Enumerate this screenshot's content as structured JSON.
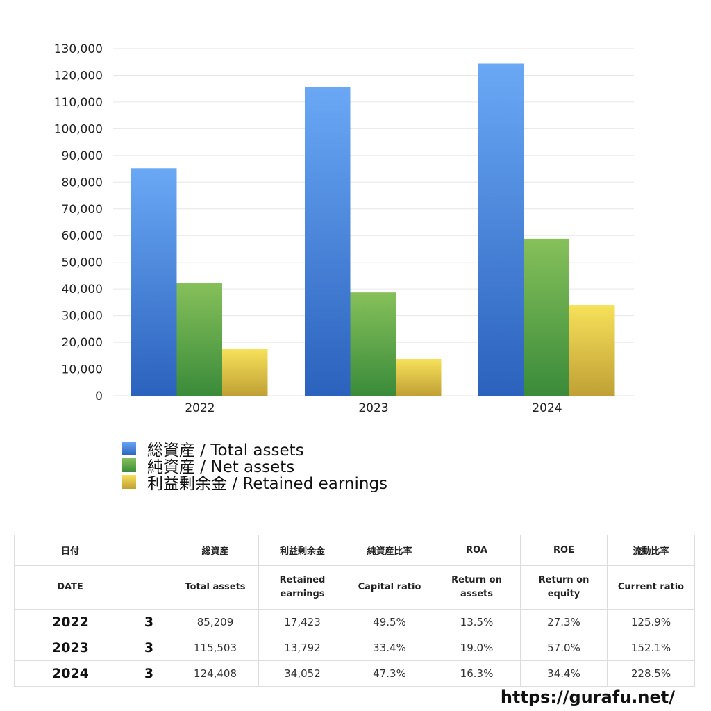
{
  "chart_data": {
    "type": "bar",
    "categories": [
      "2022",
      "2023",
      "2024"
    ],
    "series": [
      {
        "name": "総資産 / Total assets",
        "values": [
          85209,
          115503,
          124408
        ],
        "color_top": "#6aa8f5",
        "color_bottom": "#2b62bd"
      },
      {
        "name": "純資産 / Net assets",
        "values": [
          42300,
          38700,
          58800
        ],
        "color_top": "#86c05a",
        "color_bottom": "#3a8b3a"
      },
      {
        "name": "利益剰余金 / Retained earnings",
        "values": [
          17423,
          13792,
          34052
        ],
        "color_top": "#f7e15a",
        "color_bottom": "#c0a035"
      }
    ],
    "ylim": [
      0,
      130000
    ],
    "yticks": [
      "0",
      "10,000",
      "20,000",
      "30,000",
      "40,000",
      "50,000",
      "60,000",
      "70,000",
      "80,000",
      "90,000",
      "100,000",
      "110,000",
      "120,000",
      "130,000"
    ],
    "grid": true,
    "legend_position": "bottom-left"
  },
  "table": {
    "header_jp": [
      "日付",
      "",
      "総資産",
      "利益剰余金",
      "純資産比率",
      "ROA",
      "ROE",
      "流動比率"
    ],
    "header_en": [
      "DATE",
      "",
      "Total assets",
      "Retained earnings",
      "Capital ratio",
      "Return on assets",
      "Return on equity",
      "Current ratio"
    ],
    "rows": [
      {
        "year": "2022",
        "month": "3",
        "values": [
          "85,209",
          "17,423",
          "49.5%",
          "13.5%",
          "27.3%",
          "125.9%"
        ]
      },
      {
        "year": "2023",
        "month": "3",
        "values": [
          "115,503",
          "13,792",
          "33.4%",
          "19.0%",
          "57.0%",
          "152.1%"
        ]
      },
      {
        "year": "2024",
        "month": "3",
        "values": [
          "124,408",
          "34,052",
          "47.3%",
          "16.3%",
          "34.4%",
          "228.5%"
        ]
      }
    ]
  },
  "footer": {
    "url": "https://gurafu.net/"
  }
}
